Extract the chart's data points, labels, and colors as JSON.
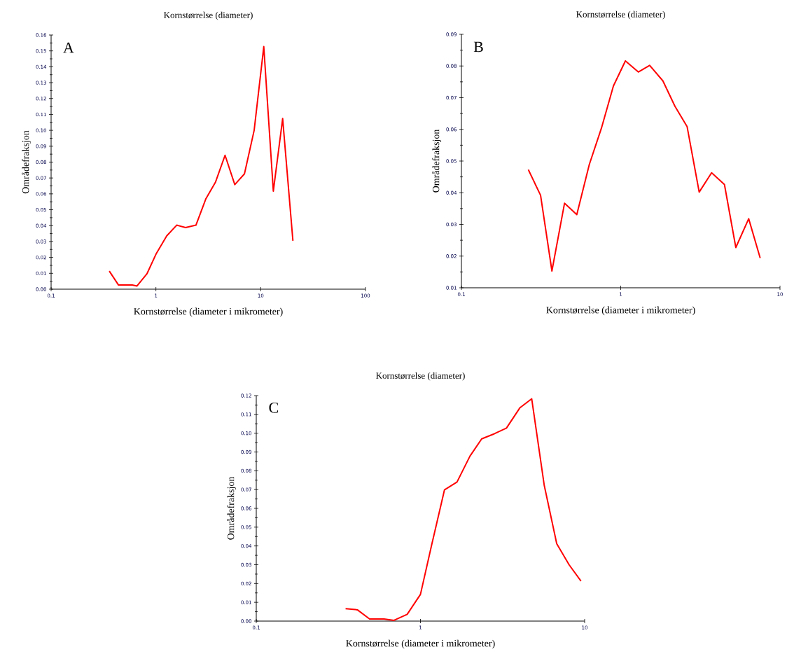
{
  "chart_data": [
    {
      "type": "line",
      "title": "Kornstørrelse (diameter)",
      "xlabel": "Kornstørrelse (diameter i mikrometer)",
      "ylabel": "Områdefraksjon",
      "annotations": [
        "A"
      ],
      "log": "x",
      "color": "#ff0000",
      "x": [
        0.359,
        0.44,
        0.595,
        0.66,
        0.82,
        1.01,
        1.27,
        1.58,
        1.92,
        2.41,
        2.99,
        3.7,
        4.57,
        5.66,
        7.0,
        8.66,
        10.7,
        13.2,
        16.2,
        20.3
      ],
      "values": [
        0.0114,
        0.0026,
        0.0026,
        0.002,
        0.0096,
        0.0225,
        0.0336,
        0.0403,
        0.0388,
        0.0403,
        0.0567,
        0.0673,
        0.0843,
        0.0658,
        0.0726,
        0.1,
        0.1527,
        0.0617,
        0.1074,
        0.0305
      ],
      "xlim": [
        0.1,
        100
      ],
      "xticks": [
        0.1,
        1,
        10,
        100
      ],
      "ylim": [
        0,
        0.16
      ],
      "yticks": [
        {
          "value": 0,
          "label": "0.00"
        },
        {
          "value": 0.01,
          "label": "0.01"
        },
        {
          "value": 0.02,
          "label": "0.02"
        },
        {
          "value": 0.03,
          "label": "0.03"
        },
        {
          "value": 0.04,
          "label": "0.04"
        },
        {
          "value": 0.05,
          "label": "0.05"
        },
        {
          "value": 0.06,
          "label": "0.06"
        },
        {
          "value": 0.07,
          "label": "0.07"
        },
        {
          "value": 0.08,
          "label": "0.08"
        },
        {
          "value": 0.09,
          "label": "0.09"
        },
        {
          "value": 0.1,
          "label": "0.10"
        },
        {
          "value": 0.11,
          "label": "0.11"
        },
        {
          "value": 0.12,
          "label": "0.12"
        },
        {
          "value": 0.13,
          "label": "0.13"
        },
        {
          "value": 0.14,
          "label": "0.14"
        },
        {
          "value": 0.15,
          "label": "0.15"
        },
        {
          "value": 0.16,
          "label": "0.16"
        }
      ]
    },
    {
      "type": "line",
      "title": "Kornstørrelse (diameter)",
      "xlabel": "Kornstørrelse (diameter i mikrometer)",
      "ylabel": "Områdefraksjon",
      "annotations": [
        "B"
      ],
      "log": "x",
      "color": "#ff0000",
      "x": [
        0.263,
        0.314,
        0.37,
        0.444,
        0.53,
        0.635,
        0.757,
        0.9,
        1.07,
        1.29,
        1.52,
        1.84,
        2.19,
        2.61,
        3.11,
        3.72,
        4.48,
        5.28,
        6.36,
        7.51
      ],
      "values": [
        0.0473,
        0.0392,
        0.0153,
        0.0367,
        0.0331,
        0.0489,
        0.0604,
        0.0737,
        0.0816,
        0.0781,
        0.0802,
        0.0753,
        0.0673,
        0.0609,
        0.0402,
        0.0463,
        0.0426,
        0.0227,
        0.0318,
        0.0194
      ],
      "xlim": [
        0.1,
        10
      ],
      "xticks": [
        0.1,
        1,
        10
      ],
      "ylim": [
        0.01,
        0.09
      ],
      "yticks": [
        0.01,
        0.02,
        0.03,
        0.04,
        0.05,
        0.06,
        0.07,
        0.08,
        0.09
      ]
    },
    {
      "type": "line",
      "title": "Kornstørrelse (diameter)",
      "xlabel": "Kornstørrelse (diameter i mikrometer)",
      "ylabel": "Områdefraksjon",
      "annotations": [
        "C"
      ],
      "log": "x",
      "color": "#ff0000",
      "x": [
        0.35,
        0.413,
        0.49,
        0.6,
        0.69,
        0.83,
        1.0,
        1.17,
        1.4,
        1.67,
        2.0,
        2.36,
        2.82,
        3.34,
        4.04,
        4.76,
        5.67,
        6.76,
        8.05,
        9.5
      ],
      "values": [
        0.0066,
        0.006,
        0.0011,
        0.0011,
        0.0004,
        0.0036,
        0.0142,
        0.0405,
        0.0698,
        0.074,
        0.0877,
        0.097,
        0.0997,
        0.1027,
        0.1136,
        0.1183,
        0.0724,
        0.0412,
        0.0299,
        0.0213
      ],
      "xlim": [
        0.1,
        10
      ],
      "xticks": [
        0.1,
        1,
        10
      ],
      "ylim": [
        0,
        0.12
      ],
      "yticks": [
        {
          "value": 0,
          "label": "0.00"
        },
        {
          "value": 0.01,
          "label": "0.01"
        },
        {
          "value": 0.02,
          "label": "0.02"
        },
        {
          "value": 0.03,
          "label": "0.03"
        },
        {
          "value": 0.04,
          "label": "0.04"
        },
        {
          "value": 0.05,
          "label": "0.05"
        },
        {
          "value": 0.06,
          "label": "0.06"
        },
        {
          "value": 0.07,
          "label": "0.07"
        },
        {
          "value": 0.08,
          "label": "0.08"
        },
        {
          "value": 0.09,
          "label": "0.09"
        },
        {
          "value": 0.1,
          "label": "0.10"
        },
        {
          "value": 0.11,
          "label": "0.11"
        },
        {
          "value": 0.12,
          "label": "0.12"
        }
      ]
    }
  ]
}
